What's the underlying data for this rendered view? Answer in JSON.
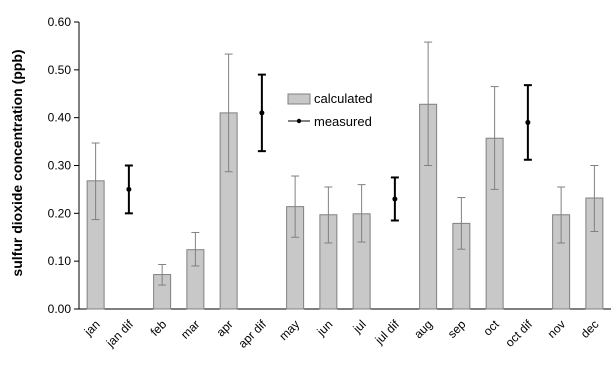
{
  "chart_data": {
    "type": "bar",
    "ylabel": "sulfur dioxide concentration (ppb)",
    "xlabel": "",
    "ylim": [
      0,
      0.6
    ],
    "yticks": [
      "0.00",
      "0.10",
      "0.20",
      "0.30",
      "0.40",
      "0.50",
      "0.60"
    ],
    "categories": [
      "jan",
      "jan dif",
      "feb",
      "mar",
      "apr",
      "apr dif",
      "may",
      "jun",
      "jul",
      "jul dif",
      "aug",
      "sep",
      "oct",
      "oct dif",
      "nov",
      "dec"
    ],
    "legend_position": "top-center",
    "colors": {
      "bar_fill": "#c8c8c8",
      "bar_stroke": "#808080",
      "measured": "#000000",
      "axis": "#000000"
    },
    "series": [
      {
        "name": "calculated",
        "kind": "bar",
        "values": [
          0.268,
          null,
          0.072,
          0.124,
          0.41,
          null,
          0.214,
          0.197,
          0.199,
          null,
          0.428,
          0.179,
          0.357,
          null,
          0.197,
          0.232
        ],
        "err_low": [
          0.187,
          null,
          0.05,
          0.09,
          0.287,
          null,
          0.15,
          0.138,
          0.14,
          null,
          0.3,
          0.125,
          0.25,
          null,
          0.138,
          0.162
        ],
        "err_high": [
          0.347,
          null,
          0.093,
          0.16,
          0.533,
          null,
          0.278,
          0.255,
          0.26,
          null,
          0.558,
          0.233,
          0.465,
          null,
          0.255,
          0.3
        ]
      },
      {
        "name": "measured",
        "kind": "point",
        "values": [
          null,
          0.25,
          null,
          null,
          null,
          0.41,
          null,
          null,
          null,
          0.23,
          null,
          null,
          null,
          0.39,
          null,
          null
        ],
        "err_low": [
          null,
          0.2,
          null,
          null,
          null,
          0.33,
          null,
          null,
          null,
          0.185,
          null,
          null,
          null,
          0.312,
          null,
          null
        ],
        "err_high": [
          null,
          0.3,
          null,
          null,
          null,
          0.49,
          null,
          null,
          null,
          0.275,
          null,
          null,
          null,
          0.468,
          null,
          null
        ]
      }
    ]
  }
}
